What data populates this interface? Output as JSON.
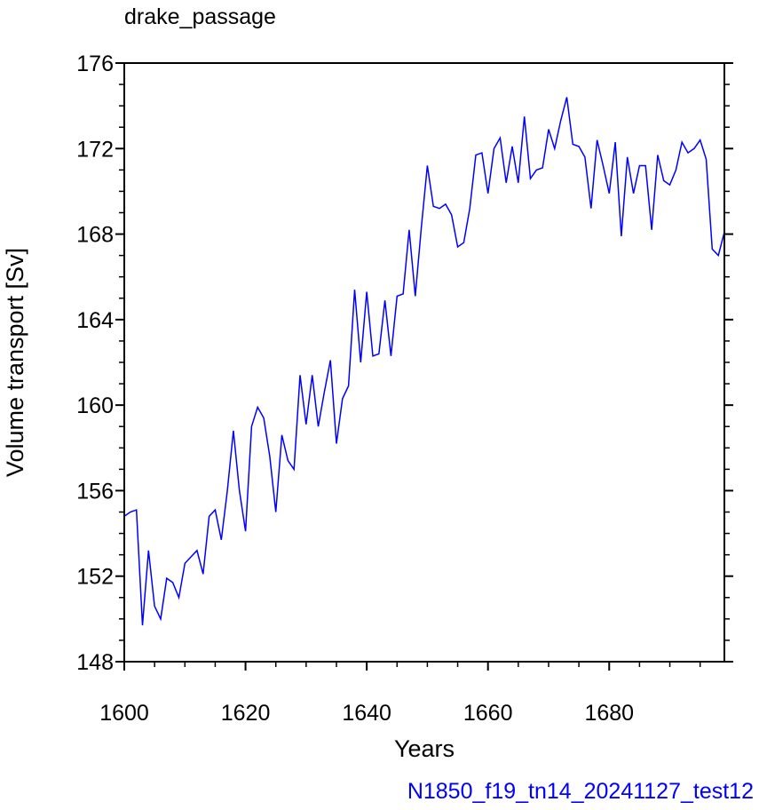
{
  "chart_data": {
    "type": "line",
    "title": "drake_passage",
    "subtitle": "N1850_f19_tn14_20241127_test12",
    "xlabel": "Years",
    "ylabel": "Volume transport [Sv]",
    "xlim": [
      1600,
      1699
    ],
    "ylim": [
      148,
      176
    ],
    "x_ticks": [
      1600,
      1620,
      1640,
      1660,
      1680
    ],
    "y_ticks": [
      148,
      152,
      156,
      160,
      164,
      168,
      172,
      176
    ],
    "x_tick_labels": [
      "1600",
      "1620",
      "1640",
      "1660",
      "1680"
    ],
    "y_tick_labels": [
      "148",
      "152",
      "156",
      "160",
      "164",
      "168",
      "172",
      "176"
    ],
    "grid": false,
    "legend": "none",
    "line_color": "#0000ff",
    "subtitle_color": "#0000ff",
    "series": [
      {
        "x": [
          1600,
          1601,
          1602,
          1603,
          1604,
          1605,
          1606,
          1607,
          1608,
          1609,
          1610,
          1611,
          1612,
          1613,
          1614,
          1615,
          1616,
          1617,
          1618,
          1619,
          1620,
          1621,
          1622,
          1623,
          1624,
          1625,
          1626,
          1627,
          1628,
          1629,
          1630,
          1631,
          1632,
          1633,
          1634,
          1635,
          1636,
          1637,
          1638,
          1639,
          1640,
          1641,
          1642,
          1643,
          1644,
          1645,
          1646,
          1647,
          1648,
          1649,
          1650,
          1651,
          1652,
          1653,
          1654,
          1655,
          1656,
          1657,
          1658,
          1659,
          1660,
          1661,
          1662,
          1663,
          1664,
          1665,
          1666,
          1667,
          1668,
          1669,
          1670,
          1671,
          1672,
          1673,
          1674,
          1675,
          1676,
          1677,
          1678,
          1679,
          1680,
          1681,
          1682,
          1683,
          1684,
          1685,
          1686,
          1687,
          1688,
          1689,
          1690,
          1691,
          1692,
          1693,
          1694,
          1695,
          1696,
          1697,
          1698,
          1699
        ],
        "values": [
          154.8,
          155.0,
          155.1,
          149.7,
          153.2,
          150.6,
          150.0,
          151.9,
          151.7,
          151.0,
          152.6,
          152.9,
          153.2,
          152.1,
          154.8,
          155.1,
          153.7,
          156.0,
          158.8,
          156.0,
          154.1,
          159.0,
          159.9,
          159.4,
          157.6,
          155.0,
          158.6,
          157.4,
          157.0,
          161.4,
          159.1,
          161.4,
          159.0,
          160.6,
          162.1,
          158.2,
          160.3,
          160.9,
          165.4,
          162.0,
          165.3,
          162.3,
          162.4,
          164.9,
          162.3,
          165.1,
          165.2,
          168.2,
          165.1,
          168.3,
          171.2,
          169.3,
          169.2,
          169.4,
          168.9,
          167.4,
          167.6,
          169.2,
          171.7,
          171.8,
          169.9,
          172.0,
          172.5,
          170.4,
          172.1,
          170.4,
          173.5,
          170.6,
          171.0,
          171.1,
          172.9,
          172.0,
          173.3,
          174.4,
          172.2,
          172.1,
          171.6,
          169.2,
          172.4,
          171.2,
          169.9,
          172.3,
          167.9,
          171.6,
          169.9,
          171.2,
          171.2,
          168.2,
          171.7,
          170.5,
          170.3,
          171.0,
          172.3,
          171.8,
          172.0,
          172.4,
          171.5,
          167.3,
          167.0,
          168.1
        ]
      }
    ]
  }
}
